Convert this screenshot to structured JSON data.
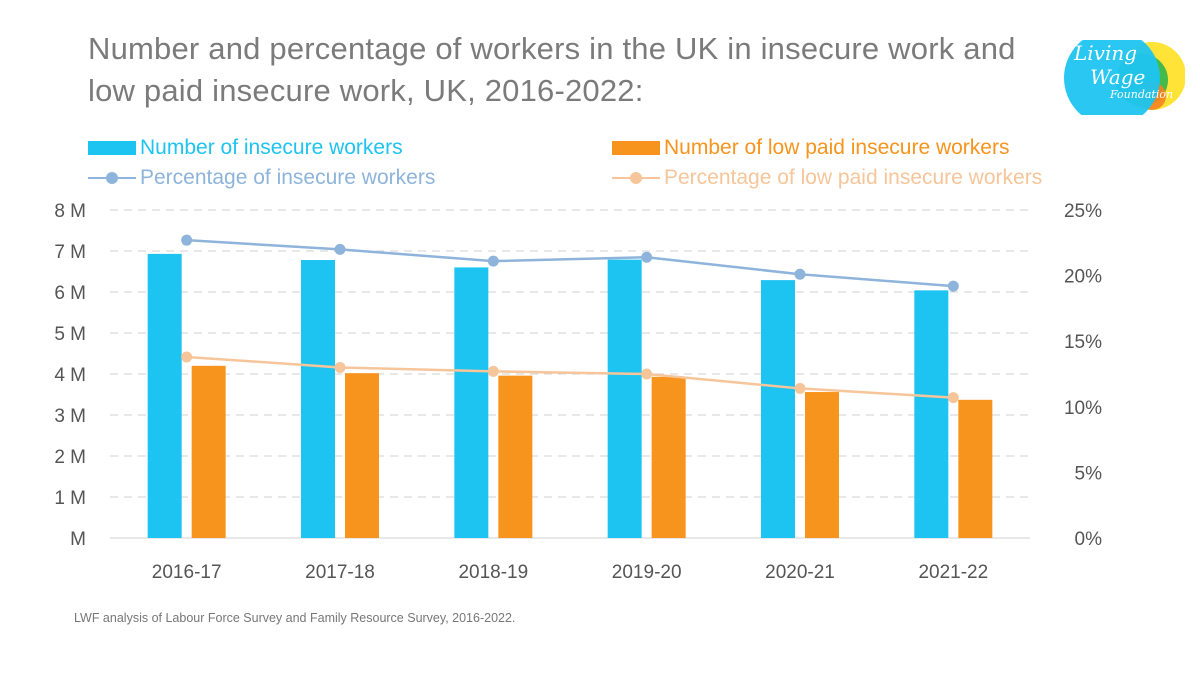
{
  "title": "Number and percentage of workers in the UK in insecure work and low paid insecure work, UK, 2016-2022:",
  "source": "LWF analysis of Labour Force Survey and Family Resource Survey, 2016-2022.",
  "logo": {
    "line1": "Living",
    "line2": "Wage",
    "line3": "Foundation"
  },
  "colors": {
    "insecure_bar": "#1ec4f1",
    "low_paid_bar": "#f7941d",
    "insecure_line": "#8eb4dc",
    "low_paid_line": "#f6c59a",
    "grid": "#d9d9d9"
  },
  "legend": [
    {
      "label": "Number of insecure workers",
      "type": "bar",
      "color": "#1ec4f1"
    },
    {
      "label": "Number of low paid insecure workers",
      "type": "bar",
      "color": "#f7941d"
    },
    {
      "label": "Percentage of insecure workers",
      "type": "line",
      "color": "#8eb4dc"
    },
    {
      "label": "Percentage of low paid insecure workers",
      "type": "line",
      "color": "#f6c59a"
    }
  ],
  "chart_data": {
    "type": "bar",
    "title": "Number and percentage of workers in the UK in insecure work and low paid insecure work, UK, 2016-2022:",
    "categories": [
      "2016-17",
      "2017-18",
      "2018-19",
      "2019-20",
      "2020-21",
      "2021-22"
    ],
    "series": [
      {
        "name": "Number of insecure workers",
        "type": "bar",
        "axis": "left",
        "values": [
          6.93,
          6.78,
          6.6,
          6.79,
          6.29,
          6.04
        ]
      },
      {
        "name": "Number of low paid insecure workers",
        "type": "bar",
        "axis": "left",
        "values": [
          4.2,
          4.02,
          3.96,
          3.93,
          3.56,
          3.37
        ]
      },
      {
        "name": "Percentage of insecure workers",
        "type": "line",
        "axis": "right",
        "values": [
          22.7,
          22.0,
          21.1,
          21.4,
          20.1,
          19.2
        ]
      },
      {
        "name": "Percentage of low paid insecure workers",
        "type": "line",
        "axis": "right",
        "values": [
          13.8,
          13.0,
          12.7,
          12.5,
          11.4,
          10.7
        ]
      }
    ],
    "ylim": [
      0,
      8
    ],
    "y2lim": [
      0,
      25
    ],
    "yticks": [
      "M",
      "1 M",
      "2 M",
      "3 M",
      "4 M",
      "5 M",
      "6 M",
      "7 M",
      "8 M"
    ],
    "y2ticks": [
      "0%",
      "5%",
      "10%",
      "15%",
      "20%",
      "25%"
    ],
    "grid": true,
    "legend_position": "top"
  }
}
